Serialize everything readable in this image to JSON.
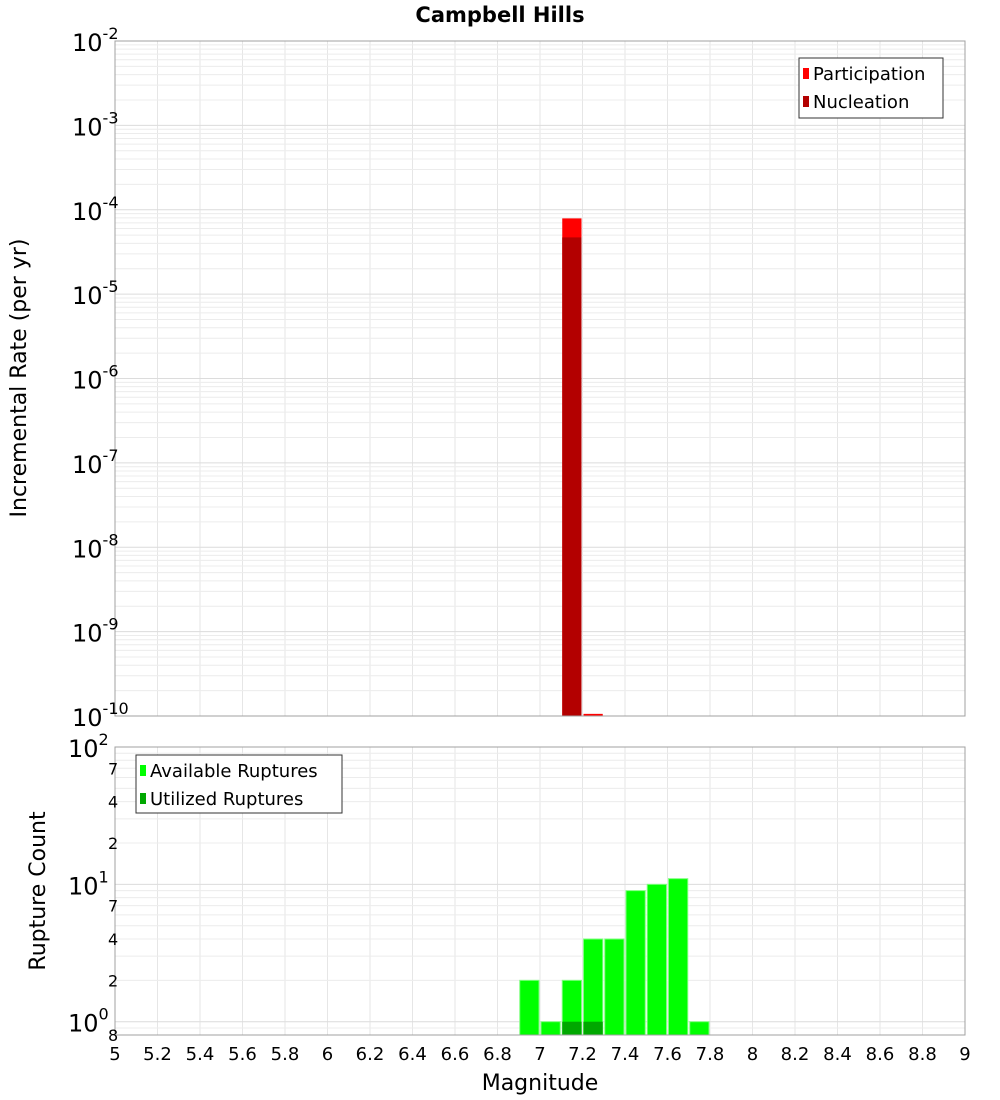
{
  "chart_data": [
    {
      "type": "bar",
      "title": "Campbell Hills",
      "xlabel": "",
      "ylabel": "Incremental Rate (per yr)",
      "yscale": "log",
      "ylim": [
        1e-10,
        0.01
      ],
      "xlim": [
        5,
        9
      ],
      "bin_width": 0.1,
      "grid": true,
      "legend_position": "top-right",
      "y_tick_labels": [
        {
          "base": "10",
          "exp": "-2",
          "value": -2
        },
        {
          "base": "10",
          "exp": "-3",
          "value": -3
        },
        {
          "base": "10",
          "exp": "-4",
          "value": -4
        },
        {
          "base": "10",
          "exp": "-5",
          "value": -5
        },
        {
          "base": "10",
          "exp": "-6",
          "value": -6
        },
        {
          "base": "10",
          "exp": "-7",
          "value": -7
        },
        {
          "base": "10",
          "exp": "-8",
          "value": -8
        },
        {
          "base": "10",
          "exp": "-9",
          "value": -9
        },
        {
          "base": "10",
          "exp": "-10",
          "value": -10
        }
      ],
      "series": [
        {
          "name": "Participation",
          "color": "#ff0000",
          "x": [
            7.15,
            7.25
          ],
          "values": [
            7.9e-05,
            1.06e-10
          ]
        },
        {
          "name": "Nucleation",
          "color": "#b30000",
          "x": [
            7.15
          ],
          "values": [
            4.7e-05
          ]
        }
      ]
    },
    {
      "type": "bar",
      "title": "",
      "xlabel": "Magnitude",
      "ylabel": "Rupture Count",
      "yscale": "log",
      "ylim": [
        0.8,
        100
      ],
      "xlim": [
        5,
        9
      ],
      "bin_width": 0.1,
      "grid": true,
      "legend_position": "top-left",
      "x_tick_labels": [
        "5",
        "5.2",
        "5.4",
        "5.6",
        "5.8",
        "6",
        "6.2",
        "6.4",
        "6.6",
        "6.8",
        "7",
        "7.2",
        "7.4",
        "7.6",
        "7.8",
        "8",
        "8.2",
        "8.4",
        "8.6",
        "8.8",
        "9"
      ],
      "y_tick_labels": [
        {
          "base": "10",
          "exp": "2",
          "value": 100
        },
        {
          "base": "7",
          "exp": "",
          "value": 70
        },
        {
          "base": "4",
          "exp": "",
          "value": 40
        },
        {
          "base": "2",
          "exp": "",
          "value": 20
        },
        {
          "base": "10",
          "exp": "1",
          "value": 10
        },
        {
          "base": "7",
          "exp": "",
          "value": 7
        },
        {
          "base": "4",
          "exp": "",
          "value": 4
        },
        {
          "base": "2",
          "exp": "",
          "value": 2
        },
        {
          "base": "10",
          "exp": "0",
          "value": 1
        },
        {
          "base": "8",
          "exp": "",
          "value": 0.8
        }
      ],
      "series": [
        {
          "name": "Available Ruptures",
          "color": "#00ff00",
          "x": [
            6.95,
            7.05,
            7.15,
            7.25,
            7.35,
            7.45,
            7.55,
            7.65,
            7.75
          ],
          "values": [
            2,
            1,
            2,
            4,
            4,
            9,
            10,
            11,
            1
          ]
        },
        {
          "name": "Utilized Ruptures",
          "color": "#00a800",
          "x": [
            7.15,
            7.25
          ],
          "values": [
            1,
            1
          ]
        }
      ]
    }
  ]
}
